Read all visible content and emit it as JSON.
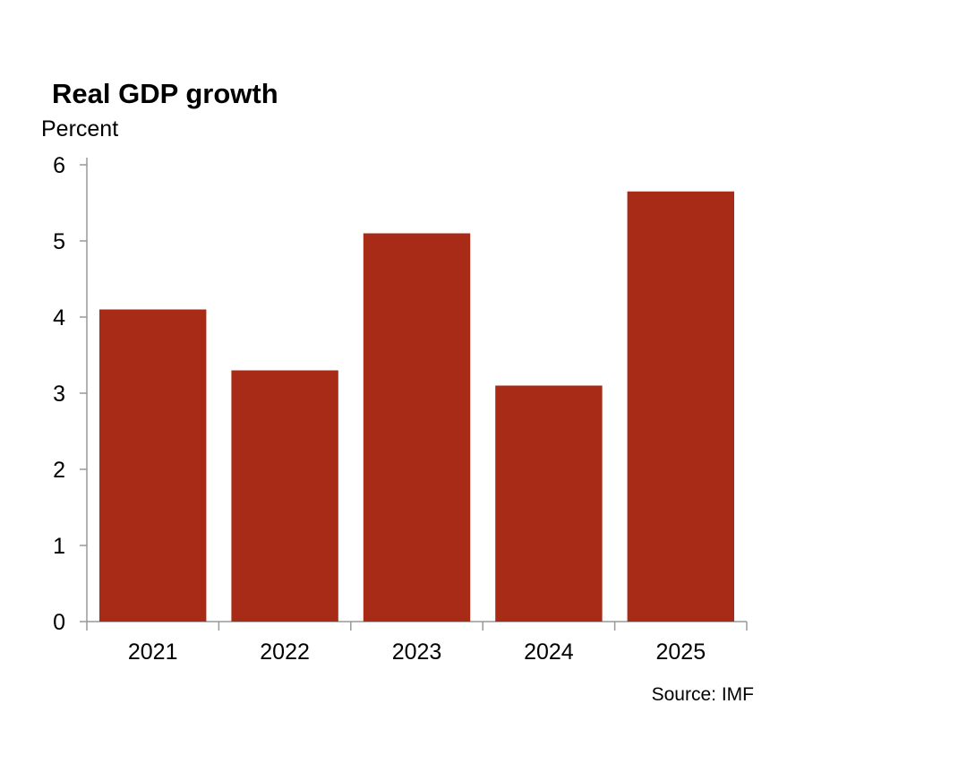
{
  "chart_data": {
    "type": "bar",
    "title": "Real GDP growth",
    "ylabel": "Percent",
    "xlabel": "",
    "categories": [
      "2021",
      "2022",
      "2023",
      "2024",
      "2025"
    ],
    "values": [
      4.1,
      3.3,
      5.1,
      3.1,
      5.65
    ],
    "ylim": [
      0,
      6
    ],
    "yticks": [
      "0",
      "1",
      "2",
      "3",
      "4",
      "5",
      "6"
    ],
    "grid": false,
    "legend": "none",
    "bar_color": "#A82B18",
    "axis_color": "#999999",
    "source": "Source: IMF"
  }
}
